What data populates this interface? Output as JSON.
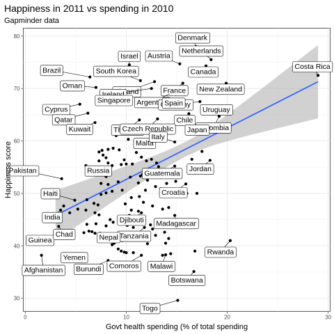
{
  "chart_data": {
    "type": "scatter",
    "title": "Happiness in 2011 vs spending in 2010",
    "subtitle": "Gapminder data",
    "xlabel": "Govt health spending (% of total spending",
    "ylabel": "Happiness score",
    "xlim": [
      -0.2,
      30.2
    ],
    "ylim": [
      27.5,
      81.5
    ],
    "x_ticks": [
      0,
      10,
      20,
      30
    ],
    "y_ticks": [
      30,
      40,
      50,
      60,
      70,
      80
    ],
    "grid": true,
    "trend": {
      "method": "linear fit with 95% confidence band",
      "x_range": [
        3.0,
        29.0
      ],
      "fit": [
        45.8,
        71.3
      ],
      "band_lower": [
        41.0,
        64.3
      ],
      "band_upper": [
        50.6,
        78.3
      ],
      "color": "#3366FF",
      "band_color": "#999999"
    },
    "colors": {
      "panel": "#EBEBEB",
      "grid": "#EBEBEB",
      "point": "#000000"
    },
    "labeled_points": [
      {
        "name": "Denmark",
        "x": 16.9,
        "y": 78.0
      },
      {
        "name": "Netherlands",
        "x": 18.4,
        "y": 75.5
      },
      {
        "name": "Austria",
        "x": 15.3,
        "y": 74.7
      },
      {
        "name": "Israel",
        "x": 10.3,
        "y": 74.5
      },
      {
        "name": "Canada",
        "x": 17.9,
        "y": 74.3
      },
      {
        "name": "Costa Rica",
        "x": 29.0,
        "y": 72.5
      },
      {
        "name": "Brazil",
        "x": 6.4,
        "y": 72.2
      },
      {
        "name": "South Korea",
        "x": 11.4,
        "y": 71.5
      },
      {
        "name": "Finland",
        "x": 12.8,
        "y": 71.3
      },
      {
        "name": "France",
        "x": 15.6,
        "y": 71.0
      },
      {
        "name": "New Zealand",
        "x": 19.9,
        "y": 71.0
      },
      {
        "name": "Oman",
        "x": 7.0,
        "y": 70.2
      },
      {
        "name": "Ireland",
        "x": 12.5,
        "y": 70.0
      },
      {
        "name": "Argentina",
        "x": 14.3,
        "y": 69.0
      },
      {
        "name": "Germany",
        "x": 17.3,
        "y": 67.5
      },
      {
        "name": "Cyprus",
        "x": 5.4,
        "y": 67.0
      },
      {
        "name": "Singapore",
        "x": 8.5,
        "y": 67.0
      },
      {
        "name": "Uruguay",
        "x": 20.3,
        "y": 65.5
      },
      {
        "name": "Spain",
        "x": 14.0,
        "y": 66.5
      },
      {
        "name": "Qatar",
        "x": 6.2,
        "y": 65.3
      },
      {
        "name": "Chile",
        "x": 16.2,
        "y": 65.2
      },
      {
        "name": "Colombia",
        "x": 19.2,
        "y": 64.7
      },
      {
        "name": "Thailand",
        "x": 11.3,
        "y": 64.0
      },
      {
        "name": "Czech Republic",
        "x": 13.1,
        "y": 64.2
      },
      {
        "name": "Kuwait",
        "x": 6.9,
        "y": 63.5
      },
      {
        "name": "Japan",
        "x": 18.4,
        "y": 62.7
      },
      {
        "name": "Malta",
        "x": 13.2,
        "y": 60.4
      },
      {
        "name": "Italy",
        "x": 14.8,
        "y": 59.8
      },
      {
        "name": "Jordan",
        "x": 18.3,
        "y": 56.3
      },
      {
        "name": "Russia",
        "x": 8.6,
        "y": 55.3
      },
      {
        "name": "Guatemala",
        "x": 14.8,
        "y": 55.2
      },
      {
        "name": "Pakistan",
        "x": 3.6,
        "y": 52.8
      },
      {
        "name": "Croatia",
        "x": 15.9,
        "y": 51.8
      },
      {
        "name": "Haiti",
        "x": 4.9,
        "y": 48.7
      },
      {
        "name": "India",
        "x": 3.5,
        "y": 46.8
      },
      {
        "name": "Djibouti",
        "x": 11.5,
        "y": 46.3
      },
      {
        "name": "Madagascar",
        "x": 14.8,
        "y": 45.8
      },
      {
        "name": "Guinea",
        "x": 1.8,
        "y": 40.6
      },
      {
        "name": "Chad",
        "x": 3.3,
        "y": 43.7
      },
      {
        "name": "Tanzania",
        "x": 11.8,
        "y": 43.5
      },
      {
        "name": "Nepal",
        "x": 8.6,
        "y": 40.2
      },
      {
        "name": "Rwanda",
        "x": 20.3,
        "y": 41.0
      },
      {
        "name": "Yemen",
        "x": 4.3,
        "y": 37.7
      },
      {
        "name": "Afghanistan",
        "x": 1.6,
        "y": 38.2
      },
      {
        "name": "Malawi",
        "x": 13.9,
        "y": 38.3
      },
      {
        "name": "Comoros",
        "x": 11.5,
        "y": 38.2
      },
      {
        "name": "Burundi",
        "x": 8.2,
        "y": 37.2
      },
      {
        "name": "Botswana",
        "x": 16.7,
        "y": 35.1
      },
      {
        "name": "Togo",
        "x": 15.1,
        "y": 29.6
      }
    ],
    "other_points": [
      [
        7.3,
        57.9
      ],
      [
        7.6,
        58.2
      ],
      [
        8.2,
        58.4
      ],
      [
        8.7,
        58.6
      ],
      [
        9.3,
        58.3
      ],
      [
        7.7,
        57.3
      ],
      [
        8.0,
        56.8
      ],
      [
        7.3,
        56.2
      ],
      [
        8.2,
        55.8
      ],
      [
        9.5,
        55.5
      ],
      [
        10.0,
        55.6
      ],
      [
        11.0,
        57.8
      ],
      [
        11.5,
        56.9
      ],
      [
        12.0,
        56.2
      ],
      [
        12.5,
        56.5
      ],
      [
        13.0,
        55.8
      ],
      [
        6.0,
        55.3
      ],
      [
        6.5,
        54.6
      ],
      [
        7.0,
        53.5
      ],
      [
        8.0,
        53.2
      ],
      [
        10.4,
        53.1
      ],
      [
        11.6,
        53.6
      ],
      [
        12.1,
        52.5
      ],
      [
        12.7,
        53.5
      ],
      [
        7.5,
        51.9
      ],
      [
        8.2,
        51.7
      ],
      [
        9.2,
        52.2
      ],
      [
        11.2,
        52.0
      ],
      [
        11.9,
        50.6
      ],
      [
        13.4,
        50.9
      ],
      [
        14.0,
        51.9
      ],
      [
        14.9,
        52.3
      ],
      [
        16.0,
        50.0
      ],
      [
        17.0,
        50.0
      ],
      [
        8.0,
        50.1
      ],
      [
        8.6,
        50.4
      ],
      [
        9.6,
        50.6
      ],
      [
        7.5,
        49.8
      ],
      [
        10.5,
        49.2
      ],
      [
        11.3,
        49.4
      ],
      [
        6.1,
        48.8
      ],
      [
        6.8,
        48.1
      ],
      [
        7.2,
        47.8
      ],
      [
        9.9,
        48.0
      ],
      [
        10.5,
        46.8
      ],
      [
        11.2,
        46.6
      ],
      [
        12.6,
        47.6
      ],
      [
        13.6,
        47.0
      ],
      [
        14.2,
        47.3
      ],
      [
        5.2,
        47.0
      ],
      [
        6.0,
        46.8
      ],
      [
        4.4,
        46.3
      ],
      [
        3.8,
        47.6
      ],
      [
        10.3,
        45.8
      ],
      [
        12.4,
        44.0
      ],
      [
        10.7,
        43.5
      ],
      [
        12.6,
        43.2
      ],
      [
        5.8,
        42.5
      ],
      [
        6.3,
        42.8
      ],
      [
        6.6,
        42.7
      ],
      [
        6.9,
        42.4
      ],
      [
        7.4,
        42.4
      ],
      [
        6.1,
        44.1
      ],
      [
        7.0,
        44.2
      ],
      [
        8.0,
        43.8
      ],
      [
        8.7,
        44.5
      ],
      [
        8.4,
        45.0
      ],
      [
        10.1,
        43.9
      ],
      [
        12.9,
        42.0
      ],
      [
        13.8,
        42.6
      ],
      [
        14.2,
        41.4
      ],
      [
        13.9,
        40.5
      ],
      [
        11.5,
        41.5
      ],
      [
        12.1,
        40.4
      ],
      [
        7.3,
        40.9
      ],
      [
        8.8,
        40.5
      ],
      [
        9.5,
        39.0
      ],
      [
        9.8,
        38.8
      ],
      [
        10.0,
        38.7
      ],
      [
        10.7,
        38.7
      ],
      [
        9.6,
        41.0
      ],
      [
        9.2,
        39.4
      ],
      [
        13.6,
        38.2
      ],
      [
        14.4,
        38.5
      ],
      [
        16.1,
        43.8
      ],
      [
        16.8,
        39.0
      ],
      [
        10.2,
        60.3
      ],
      [
        9.0,
        61.0
      ],
      [
        9.8,
        56.4
      ],
      [
        10.6,
        55.6
      ],
      [
        13.2,
        55.1
      ],
      [
        11.4,
        53.3
      ],
      [
        12.9,
        51.3
      ],
      [
        7.9,
        53.7
      ],
      [
        6.9,
        46.3
      ],
      [
        7.3,
        45.9
      ],
      [
        11.7,
        48.3
      ],
      [
        14.9,
        50.0
      ],
      [
        17.5,
        58.0
      ],
      [
        16.5,
        56.5
      ]
    ]
  }
}
